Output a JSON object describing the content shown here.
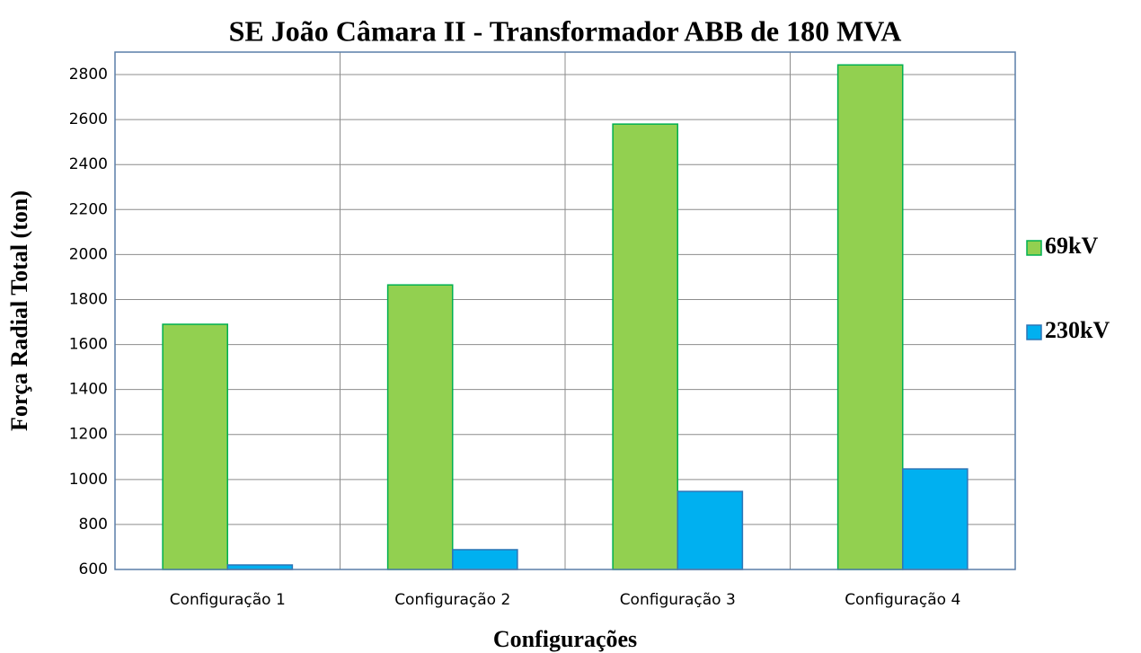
{
  "chart_data": {
    "type": "bar",
    "title": "SE João Câmara II - Transformador ABB de 180 MVA",
    "x_label": "Configurações",
    "y_label": "Força Radial Total (ton)",
    "categories": [
      "Configuração 1",
      "Configuração 2",
      "Configuração 3",
      "Configuração 4"
    ],
    "series": [
      {
        "name": "69kV",
        "color": "#92d050",
        "edge": "#00b050",
        "values": [
          1690,
          1865,
          2580,
          2843
        ]
      },
      {
        "name": "230kV",
        "color": "#00b0f0",
        "edge": "#2e75b6",
        "values": [
          620,
          688,
          947,
          1047
        ]
      }
    ],
    "ylim": [
      600,
      2900
    ],
    "yticks": [
      600,
      800,
      1000,
      1200,
      1400,
      1600,
      1800,
      2000,
      2200,
      2400,
      2600,
      2800
    ],
    "grid": true,
    "legend": "right"
  }
}
